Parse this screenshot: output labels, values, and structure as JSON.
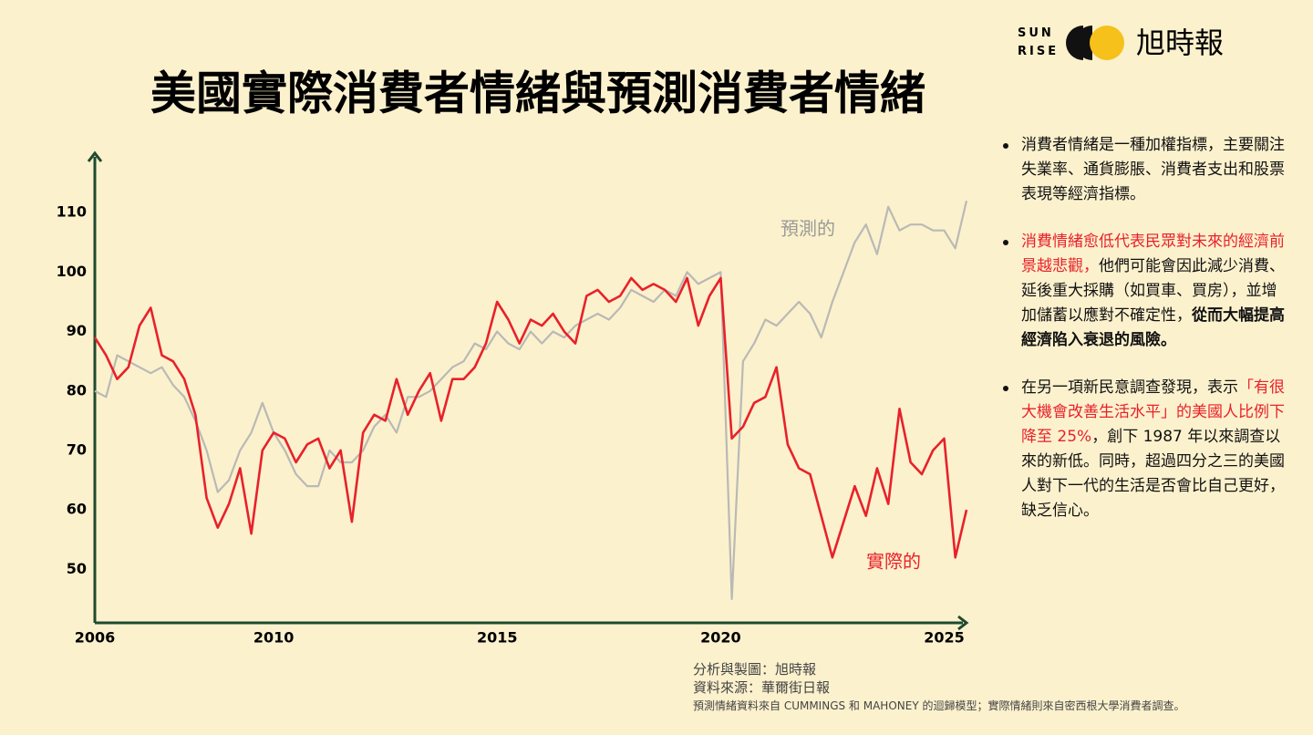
{
  "header": {
    "logo_top": "SUN",
    "logo_bottom": "RISE",
    "brand": "旭時報"
  },
  "chart_data": {
    "type": "line",
    "title": "美國實際消費者情緒與預測消費者情緒",
    "x": [
      2006,
      2006.25,
      2006.5,
      2006.75,
      2007,
      2007.25,
      2007.5,
      2007.75,
      2008,
      2008.25,
      2008.5,
      2008.75,
      2009,
      2009.25,
      2009.5,
      2009.75,
      2010,
      2010.25,
      2010.5,
      2010.75,
      2011,
      2011.25,
      2011.5,
      2011.75,
      2012,
      2012.25,
      2012.5,
      2012.75,
      2013,
      2013.25,
      2013.5,
      2013.75,
      2014,
      2014.25,
      2014.5,
      2014.75,
      2015,
      2015.25,
      2015.5,
      2015.75,
      2016,
      2016.25,
      2016.5,
      2016.75,
      2017,
      2017.25,
      2017.5,
      2017.75,
      2018,
      2018.25,
      2018.5,
      2018.75,
      2019,
      2019.25,
      2019.5,
      2019.75,
      2020,
      2020.25,
      2020.5,
      2020.75,
      2021,
      2021.25,
      2021.5,
      2021.75,
      2022,
      2022.25,
      2022.5,
      2022.75,
      2023,
      2023.25,
      2023.5,
      2023.75,
      2024,
      2024.25,
      2024.5,
      2024.75,
      2025,
      2025.25,
      2025.5
    ],
    "series": [
      {
        "name": "實際的",
        "color": "#e8212b",
        "values": [
          89,
          86,
          82,
          84,
          91,
          94,
          86,
          85,
          82,
          76,
          62,
          57,
          61,
          67,
          56,
          70,
          73,
          72,
          68,
          71,
          72,
          67,
          70,
          58,
          73,
          76,
          75,
          82,
          76,
          80,
          83,
          75,
          82,
          82,
          84,
          88,
          95,
          92,
          88,
          92,
          91,
          93,
          90,
          88,
          96,
          97,
          95,
          96,
          99,
          97,
          98,
          97,
          95,
          99,
          91,
          96,
          99,
          72,
          74,
          78,
          79,
          84,
          71,
          67,
          66,
          59,
          52,
          58,
          64,
          59,
          67,
          61,
          77,
          68,
          66,
          70,
          72,
          52,
          60
        ]
      },
      {
        "name": "預測的",
        "color": "#b9b9b5",
        "values": [
          80,
          79,
          86,
          85,
          84,
          83,
          84,
          81,
          79,
          75,
          70,
          63,
          65,
          70,
          73,
          78,
          73,
          70,
          66,
          64,
          64,
          70,
          68,
          68,
          70,
          74,
          76,
          73,
          79,
          79,
          80,
          82,
          84,
          85,
          88,
          87,
          90,
          88,
          87,
          90,
          88,
          90,
          89,
          91,
          92,
          93,
          92,
          94,
          97,
          96,
          95,
          97,
          96,
          100,
          98,
          99,
          100,
          45,
          85,
          88,
          92,
          91,
          93,
          95,
          93,
          89,
          95,
          100,
          105,
          108,
          103,
          111,
          107,
          108,
          108,
          107,
          107,
          104,
          112
        ]
      }
    ],
    "xlim": [
      2006,
      2025.5
    ],
    "xticks": [
      2006,
      2010,
      2015,
      2020,
      2025
    ],
    "ylim": [
      41,
      120
    ],
    "yticks": [
      50,
      60,
      70,
      80,
      90,
      100,
      110
    ]
  },
  "notes": [
    [
      {
        "text": "消費者情緒是一種加權指標，主要關注失業率、通貨膨脹、消費者支出和股票表現等經濟指標。",
        "style": "plain"
      }
    ],
    [
      {
        "text": "消費情緒愈低代表民眾對未來的經濟前景越悲觀，",
        "style": "red"
      },
      {
        "text": "他們可能會因此減少消費、延後重大採購（如買車、買房），並增加儲蓄以應對不確定性，",
        "style": "plain"
      },
      {
        "text": "從而大幅提高經濟陷入衰退的風險。",
        "style": "bold"
      }
    ],
    [
      {
        "text": "在另一項新民意調查發現，表示",
        "style": "plain"
      },
      {
        "text": "「有很大機會改善生活水平」的美國人比例下降至 25%",
        "style": "red"
      },
      {
        "text": "，創下 1987 年以來調查以來的新低。同時，超過四分之三的美國人對下一代的生活是否會比自己更好，缺乏信心。",
        "style": "plain"
      }
    ]
  ],
  "footer": {
    "credit": "分析與製圖：旭時報",
    "source": "資料來源：華爾街日報",
    "note": "預測情緒資料來自 CUMMINGS 和 MAHONEY 的迴歸模型；實際情緒則來自密西根大學消費者調查。"
  }
}
